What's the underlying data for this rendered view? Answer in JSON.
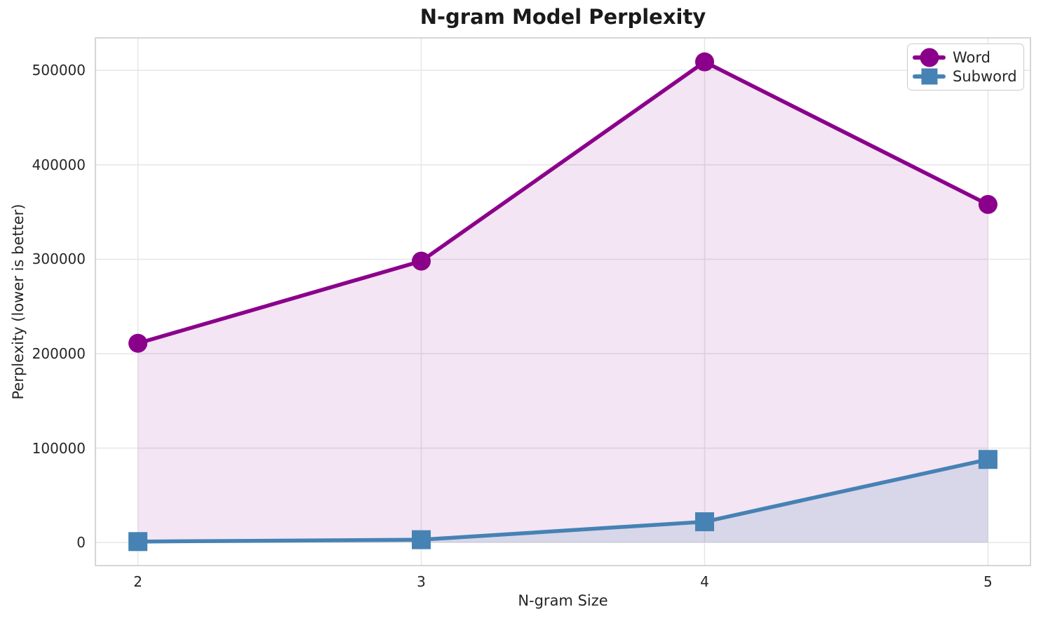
{
  "chart_data": {
    "type": "line",
    "title": "N-gram Model Perplexity",
    "xlabel": "N-gram Size",
    "ylabel": "Perplexity (lower is better)",
    "x": [
      2,
      3,
      4,
      5
    ],
    "series": [
      {
        "name": "Word",
        "color": "#8B008B",
        "marker": "circle",
        "values": [
          211000,
          298000,
          509000,
          358000
        ],
        "fill_to_zero": true,
        "fill_alpha": 0.1
      },
      {
        "name": "Subword",
        "color": "#4682B4",
        "marker": "square",
        "values": [
          1000,
          3000,
          22000,
          88000
        ],
        "fill_to_zero": true,
        "fill_alpha": 0.15
      }
    ],
    "xticks": {
      "values": [
        2,
        3,
        4,
        5
      ],
      "labels": [
        "2",
        "3",
        "4",
        "5"
      ]
    },
    "yticks": {
      "values": [
        0,
        100000,
        200000,
        300000,
        400000,
        500000
      ],
      "labels": [
        "0",
        "100000",
        "200000",
        "300000",
        "400000",
        "500000"
      ]
    },
    "xlim": [
      1.85,
      5.15
    ],
    "ylim": [
      -24400,
      534400
    ],
    "grid": true,
    "legend": {
      "position": "upper right",
      "entries": [
        "Word",
        "Subword"
      ]
    },
    "colors": {
      "grid": "#e6e6e6",
      "frame": "#c9c9c9",
      "text": "#262626",
      "title": "#1a1a1a",
      "background": "#ffffff"
    }
  }
}
